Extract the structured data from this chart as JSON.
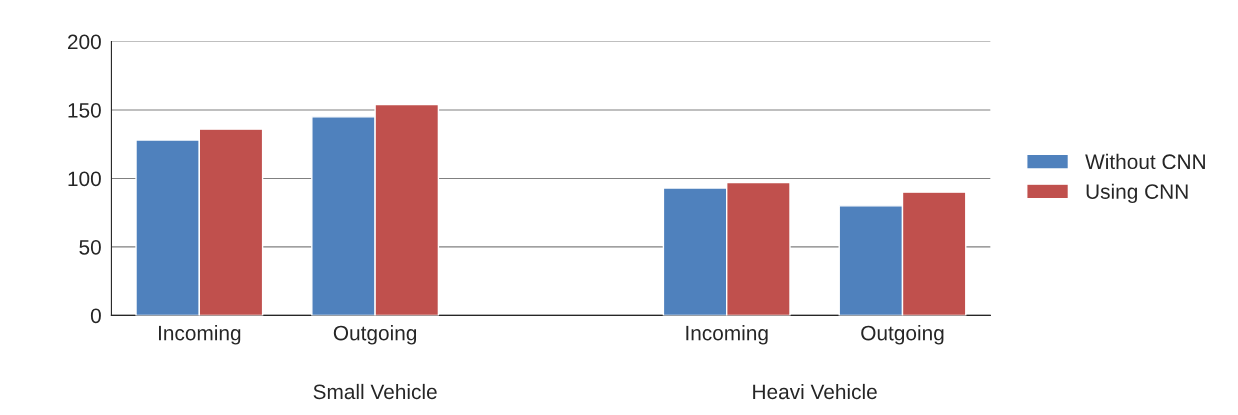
{
  "chart_data": {
    "type": "bar",
    "categories": [
      "Incoming",
      "Outgoing",
      null,
      "Incoming",
      "Outgoing"
    ],
    "series": [
      {
        "name": "Without CNN",
        "color": "#4f81bd",
        "values": [
          128,
          145,
          null,
          93,
          80
        ]
      },
      {
        "name": "Using CNN",
        "color": "#c0504d",
        "values": [
          136,
          154,
          null,
          97,
          90
        ]
      }
    ],
    "ylim": [
      0,
      200
    ],
    "yticks": [
      0,
      50,
      100,
      150,
      200
    ],
    "grid": "y",
    "legend": "right",
    "annotations": [
      "Small Vehicle",
      "Heavi Vehicle"
    ]
  }
}
